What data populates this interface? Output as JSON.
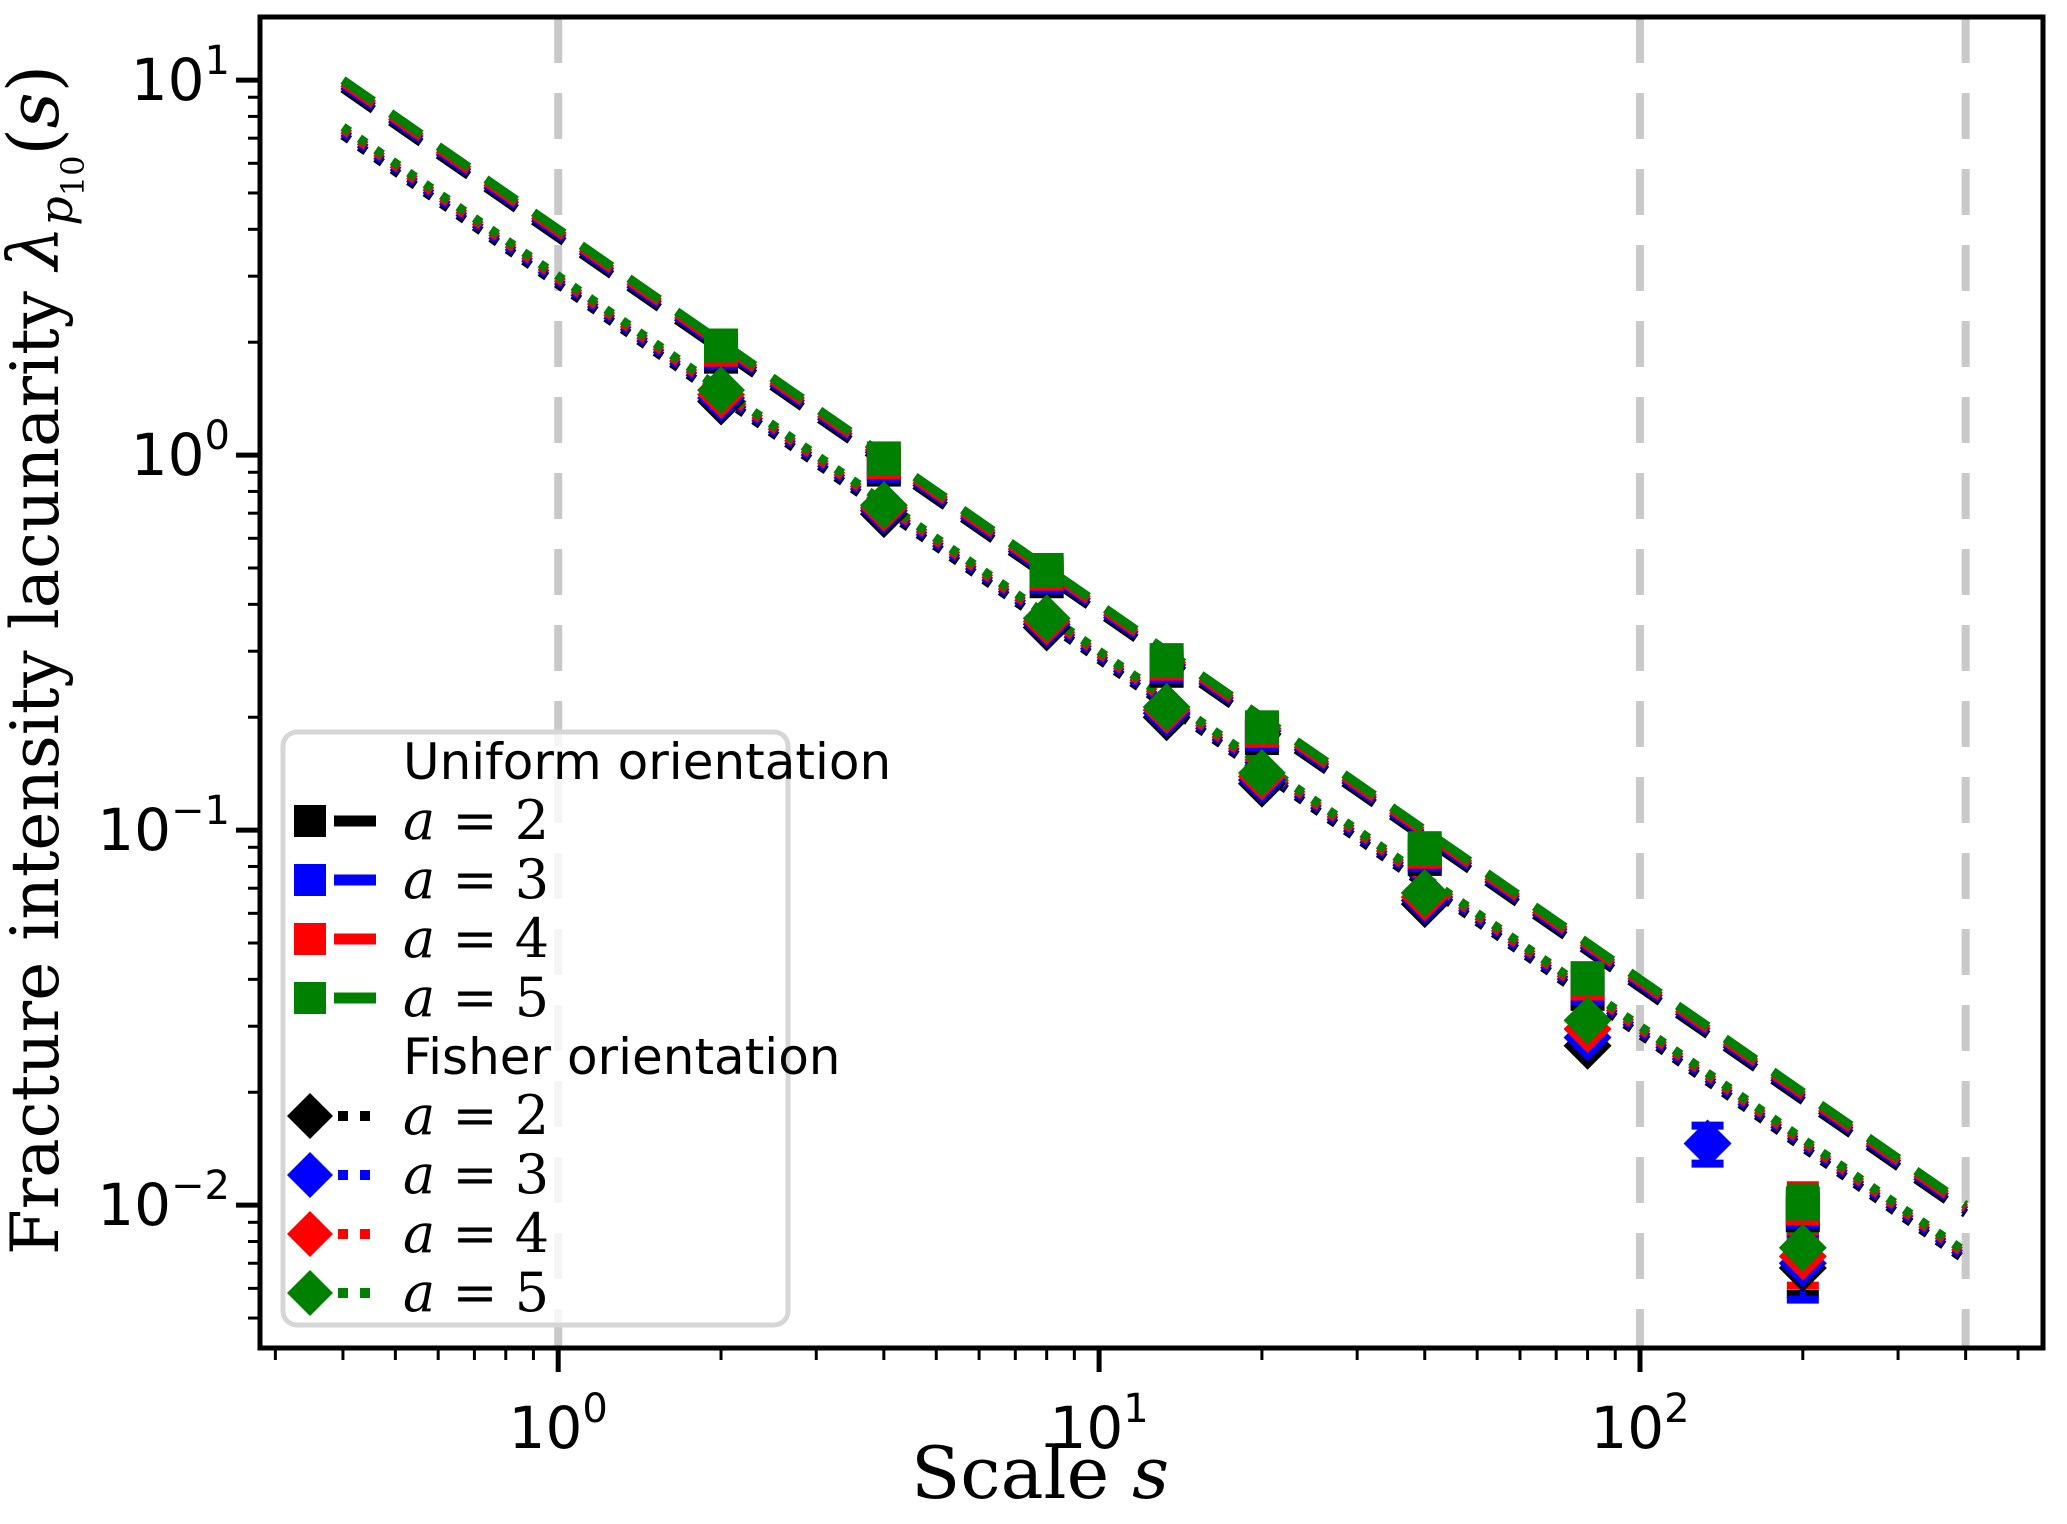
{
  "chart_data": {
    "type": "scatter",
    "scale": "log-log",
    "title": "",
    "xlabel_parts": {
      "prefix": "Scale ",
      "italic": "s"
    },
    "ylabel_parts": {
      "prefix": "Fracture intensity lacunarity ",
      "lambda": "λ",
      "sub": "p",
      "subsub": "10",
      "open": "(",
      "arg": "s",
      "close": ")"
    },
    "xlim": [
      0.281,
      556
    ],
    "ylim": [
      0.00416,
      14.73
    ],
    "grid": false,
    "x_ticks": [
      {
        "value": 1,
        "label": "10",
        "sup": "0"
      },
      {
        "value": 10,
        "label": "10",
        "sup": "1"
      },
      {
        "value": 100,
        "label": "10",
        "sup": "2"
      }
    ],
    "y_ticks": [
      {
        "value": 10,
        "label": "10",
        "sup": "1"
      },
      {
        "value": 1,
        "label": "10",
        "sup": "0"
      },
      {
        "value": 0.1,
        "label": "10",
        "sup": "−1"
      },
      {
        "value": 0.01,
        "label": "10",
        "sup": "−2"
      }
    ],
    "vlines": {
      "values": [
        1,
        100,
        400
      ],
      "color": "#c9c9c9"
    },
    "colors": {
      "black": "#000000",
      "blue": "#0000ff",
      "red": "#ff0000",
      "green": "#008000"
    },
    "fit_lines": [
      {
        "name": "uniform-a2",
        "group": "Uniform orientation",
        "a": 2,
        "color": "#000000",
        "style": "dashed",
        "coef": 3.8,
        "s_range": [
          0.4,
          400
        ]
      },
      {
        "name": "uniform-a3",
        "group": "Uniform orientation",
        "a": 3,
        "color": "#0000ff",
        "style": "dashed",
        "coef": 3.87,
        "s_range": [
          0.4,
          400
        ]
      },
      {
        "name": "uniform-a4",
        "group": "Uniform orientation",
        "a": 4,
        "color": "#ff0000",
        "style": "dashed",
        "coef": 3.93,
        "s_range": [
          0.4,
          400
        ]
      },
      {
        "name": "uniform-a5",
        "group": "Uniform orientation",
        "a": 5,
        "color": "#008000",
        "style": "dashed",
        "coef": 4.0,
        "s_range": [
          0.4,
          400
        ]
      },
      {
        "name": "fisher-a2",
        "group": "Fisher orientation",
        "a": 2,
        "color": "#000000",
        "style": "dotted",
        "coef": 2.85,
        "s_range": [
          0.4,
          400
        ]
      },
      {
        "name": "fisher-a3",
        "group": "Fisher orientation",
        "a": 3,
        "color": "#0000ff",
        "style": "dotted",
        "coef": 2.9,
        "s_range": [
          0.4,
          400
        ]
      },
      {
        "name": "fisher-a4",
        "group": "Fisher orientation",
        "a": 4,
        "color": "#ff0000",
        "style": "dotted",
        "coef": 2.95,
        "s_range": [
          0.4,
          400
        ]
      },
      {
        "name": "fisher-a5",
        "group": "Fisher orientation",
        "a": 5,
        "color": "#008000",
        "style": "dotted",
        "coef": 3.0,
        "s_range": [
          0.4,
          400
        ]
      }
    ],
    "series": [
      {
        "name": "uniform-a2",
        "group": "Uniform orientation",
        "a": 2,
        "color": "#000000",
        "marker": "square",
        "x": [
          2,
          4,
          8,
          13.33,
          20,
          40,
          80,
          200
        ],
        "y": [
          1.83,
          0.915,
          0.461,
          0.266,
          0.176,
          0.0838,
          0.0366,
          0.0094
        ],
        "yerr": [
          0,
          0,
          0,
          0,
          0,
          0,
          0,
          0.0012
        ]
      },
      {
        "name": "uniform-a3",
        "group": "Uniform orientation",
        "a": 3,
        "color": "#0000ff",
        "marker": "square",
        "x": [
          2,
          4,
          8,
          13.33,
          20,
          40,
          80,
          200
        ],
        "y": [
          1.87,
          0.936,
          0.472,
          0.272,
          0.18,
          0.0857,
          0.0378,
          0.0096
        ],
        "yerr": [
          0,
          0,
          0,
          0,
          0,
          0,
          0,
          0.0013
        ]
      },
      {
        "name": "uniform-a4",
        "group": "Uniform orientation",
        "a": 4,
        "color": "#ff0000",
        "marker": "square",
        "x": [
          2,
          4,
          8,
          13.33,
          20,
          40,
          80,
          200
        ],
        "y": [
          1.91,
          0.957,
          0.483,
          0.278,
          0.184,
          0.0876,
          0.039,
          0.0098
        ],
        "yerr": [
          0,
          0,
          0,
          0,
          0,
          0,
          0,
          0.0015
        ]
      },
      {
        "name": "uniform-a5",
        "group": "Uniform orientation",
        "a": 5,
        "color": "#008000",
        "marker": "square",
        "x": [
          2,
          4,
          8,
          13.33,
          20,
          40,
          80,
          200
        ],
        "y": [
          1.96,
          0.98,
          0.494,
          0.284,
          0.188,
          0.0895,
          0.0403,
          0.0101
        ],
        "yerr": [
          0,
          0,
          0,
          0,
          0,
          0,
          0,
          0.001
        ]
      },
      {
        "name": "fisher-a2",
        "group": "Fisher orientation",
        "a": 2,
        "color": "#000000",
        "marker": "diamond",
        "x": [
          2,
          4,
          8,
          13.33,
          20,
          40,
          80,
          200
        ],
        "y": [
          1.39,
          0.696,
          0.347,
          0.2,
          0.133,
          0.0635,
          0.0266,
          0.0068
        ],
        "yerr": [
          0,
          0,
          0,
          0,
          0,
          0,
          0,
          0.001
        ]
      },
      {
        "name": "fisher-a3",
        "group": "Fisher orientation",
        "a": 3,
        "color": "#0000ff",
        "marker": "diamond",
        "x": [
          2,
          4,
          8,
          13.33,
          20,
          40,
          80,
          133.33,
          200
        ],
        "y": [
          1.42,
          0.711,
          0.354,
          0.205,
          0.136,
          0.0649,
          0.028,
          0.0146,
          0.007
        ],
        "yerr": [
          0,
          0,
          0,
          0,
          0,
          0,
          0,
          0.0017,
          0.0014
        ]
      },
      {
        "name": "fisher-a4",
        "group": "Fisher orientation",
        "a": 4,
        "color": "#ff0000",
        "marker": "diamond",
        "x": [
          2,
          4,
          8,
          13.33,
          20,
          40,
          80,
          200
        ],
        "y": [
          1.45,
          0.723,
          0.36,
          0.209,
          0.139,
          0.0663,
          0.0295,
          0.0073
        ],
        "yerr": [
          0,
          0,
          0,
          0,
          0,
          0,
          0,
          0.0012
        ]
      },
      {
        "name": "fisher-a5",
        "group": "Fisher orientation",
        "a": 5,
        "color": "#008000",
        "marker": "diamond",
        "x": [
          2,
          4,
          8,
          13.33,
          20,
          40,
          80,
          200
        ],
        "y": [
          1.49,
          0.735,
          0.367,
          0.213,
          0.142,
          0.068,
          0.0311,
          0.0077
        ],
        "yerr": [
          0,
          0,
          0,
          0,
          0,
          0,
          0,
          0.0009
        ]
      }
    ],
    "legend": {
      "position": "lower-left",
      "sections": [
        {
          "title": "Uniform orientation",
          "marker": "square",
          "linestyle": "dashed",
          "items": [
            {
              "label": "a = 2",
              "color": "#000000"
            },
            {
              "label": "a = 3",
              "color": "#0000ff"
            },
            {
              "label": "a = 4",
              "color": "#ff0000"
            },
            {
              "label": "a = 5",
              "color": "#008000"
            }
          ]
        },
        {
          "title": "Fisher orientation",
          "marker": "diamond",
          "linestyle": "dotted",
          "items": [
            {
              "label": "a = 2",
              "color": "#000000"
            },
            {
              "label": "a = 3",
              "color": "#0000ff"
            },
            {
              "label": "a = 4",
              "color": "#ff0000"
            },
            {
              "label": "a = 5",
              "color": "#008000"
            }
          ]
        }
      ]
    }
  }
}
